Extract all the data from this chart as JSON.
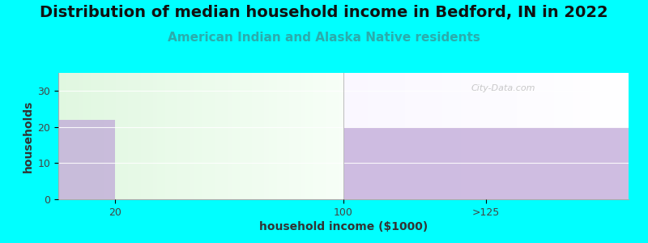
{
  "title": "Distribution of median household income in Bedford, IN in 2022",
  "subtitle": "American Indian and Alaska Native residents",
  "xlabel": "household income ($1000)",
  "ylabel": "households",
  "background_color": "#00FFFF",
  "bar_color": "#c0a8d8",
  "bars": [
    {
      "x_left": 0,
      "x_right": 20,
      "height": 22
    },
    {
      "x_left": 100,
      "x_right": 200,
      "height": 20
    }
  ],
  "xtick_positions": [
    20,
    100,
    150
  ],
  "xtick_labels": [
    "20",
    "100",
    ">125"
  ],
  "ytick_positions": [
    0,
    10,
    20,
    30
  ],
  "ytick_labels": [
    "0",
    "10",
    "20",
    "30"
  ],
  "ylim": [
    0,
    35
  ],
  "xlim": [
    0,
    200
  ],
  "divider_x": 100,
  "watermark": "City-Data.com",
  "title_fontsize": 14,
  "subtitle_fontsize": 11,
  "subtitle_color": "#2aacac",
  "axis_label_fontsize": 10,
  "grid_color": "#e8e8e8"
}
